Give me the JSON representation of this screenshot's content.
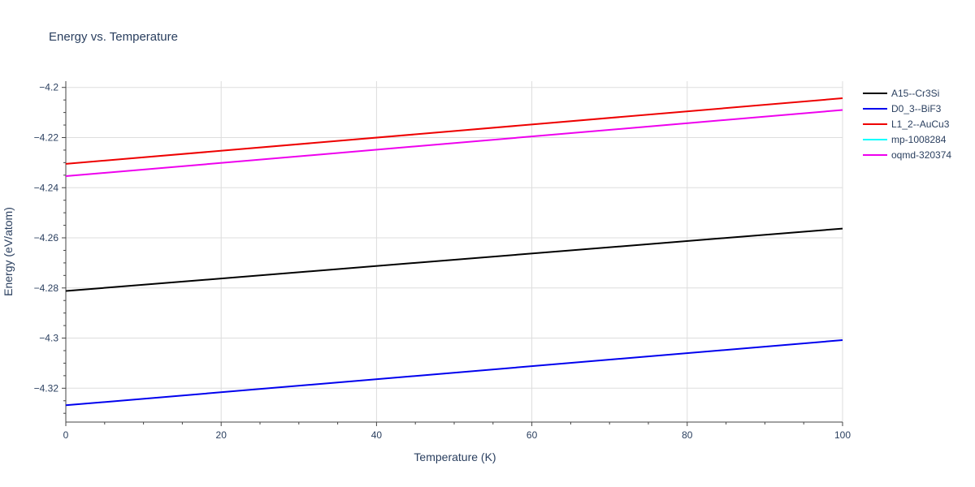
{
  "chart_data": {
    "type": "line",
    "title": "Energy vs. Temperature",
    "xlabel": "Temperature (K)",
    "ylabel": "Energy (eV/atom)",
    "xlim": [
      0,
      100
    ],
    "ylim": [
      -4.3335,
      -4.1975
    ],
    "x_ticks": [
      0,
      20,
      40,
      60,
      80,
      100
    ],
    "y_ticks": [
      -4.32,
      -4.3,
      -4.28,
      -4.26,
      -4.24,
      -4.22,
      -4.2
    ],
    "x_tick_labels": [
      "0",
      "20",
      "40",
      "60",
      "80",
      "100"
    ],
    "y_tick_labels": [
      "−4.32",
      "−4.3",
      "−4.28",
      "−4.26",
      "−4.24",
      "−4.22",
      "−4.2"
    ],
    "grid": true,
    "legend_position": "top-right outside",
    "series": [
      {
        "name": "A15--Cr3Si",
        "color": "#000000",
        "x": [
          0,
          100
        ],
        "y": [
          -4.2812,
          -4.2563
        ]
      },
      {
        "name": "D0_3--BiF3",
        "color": "#0000ee",
        "x": [
          0,
          100
        ],
        "y": [
          -4.3268,
          -4.3008
        ]
      },
      {
        "name": "L1_2--AuCu3",
        "color": "#ee0000",
        "x": [
          0,
          100
        ],
        "y": [
          -4.2305,
          -4.2043
        ]
      },
      {
        "name": "mp-1008284",
        "color": "#00ffff",
        "x": [],
        "y": []
      },
      {
        "name": "oqmd-320374",
        "color": "#ee00ee",
        "x": [
          0,
          100
        ],
        "y": [
          -4.2354,
          -4.209
        ]
      }
    ]
  }
}
